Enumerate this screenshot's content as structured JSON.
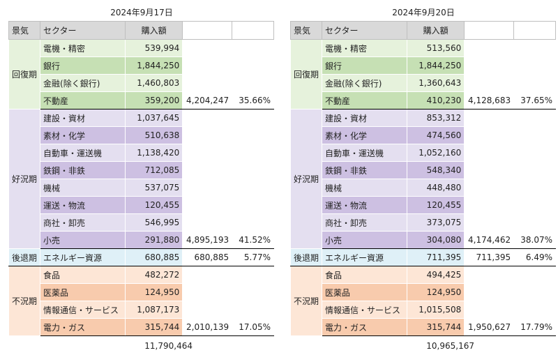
{
  "panels": [
    {
      "date": "2024年9月17日",
      "headers": {
        "phase": "景気",
        "sector": "セクター",
        "amount": "購入額"
      },
      "groups": [
        {
          "phase": "回復期",
          "color_light": "#e6f2dc",
          "color_dark": "#c6e0b4",
          "sum": "4,204,247",
          "pct": "35.66%",
          "rows": [
            {
              "sector": "電機・精密",
              "amount": "539,994"
            },
            {
              "sector": "銀行",
              "amount": "1,844,250"
            },
            {
              "sector": "金融(除く銀行)",
              "amount": "1,460,803"
            },
            {
              "sector": "不動産",
              "amount": "359,200"
            }
          ]
        },
        {
          "phase": "好況期",
          "color_light": "#e4dff0",
          "color_dark": "#cdc0e2",
          "sum": "4,895,193",
          "pct": "41.52%",
          "rows": [
            {
              "sector": "建設・資材",
              "amount": "1,037,645"
            },
            {
              "sector": "素材・化学",
              "amount": "510,638"
            },
            {
              "sector": "自動車・運送機",
              "amount": "1,138,420"
            },
            {
              "sector": "鉄鋼・非鉄",
              "amount": "712,085"
            },
            {
              "sector": "機械",
              "amount": "537,075"
            },
            {
              "sector": "運送・物流",
              "amount": "120,455"
            },
            {
              "sector": "商社・卸売",
              "amount": "546,995"
            },
            {
              "sector": "小売",
              "amount": "291,880"
            }
          ]
        },
        {
          "phase": "後退期",
          "color_light": "#dff0f7",
          "color_dark": "#dff0f7",
          "sum": "680,885",
          "pct": "5.77%",
          "rows": [
            {
              "sector": "エネルギー資源",
              "amount": "680,885"
            }
          ]
        },
        {
          "phase": "不況期",
          "color_light": "#fde6d6",
          "color_dark": "#f8cbad",
          "sum": "2,010,139",
          "pct": "17.05%",
          "rows": [
            {
              "sector": "食品",
              "amount": "482,272"
            },
            {
              "sector": "医薬品",
              "amount": "124,950"
            },
            {
              "sector": "情報通信・サービス",
              "amount": "1,087,173"
            },
            {
              "sector": "電力・ガス",
              "amount": "315,744"
            }
          ]
        }
      ],
      "total": "11,790,464"
    },
    {
      "date": "2024年9月20日",
      "headers": {
        "phase": "景気",
        "sector": "セクター",
        "amount": "購入額"
      },
      "groups": [
        {
          "phase": "回復期",
          "color_light": "#e6f2dc",
          "color_dark": "#c6e0b4",
          "sum": "4,128,683",
          "pct": "37.65%",
          "rows": [
            {
              "sector": "電機・精密",
              "amount": "513,560"
            },
            {
              "sector": "銀行",
              "amount": "1,844,250"
            },
            {
              "sector": "金融(除く銀行)",
              "amount": "1,360,643"
            },
            {
              "sector": "不動産",
              "amount": "410,230"
            }
          ]
        },
        {
          "phase": "好況期",
          "color_light": "#e4dff0",
          "color_dark": "#cdc0e2",
          "sum": "4,174,462",
          "pct": "38.07%",
          "rows": [
            {
              "sector": "建設・資材",
              "amount": "853,312"
            },
            {
              "sector": "素材・化学",
              "amount": "474,560"
            },
            {
              "sector": "自動車・運送機",
              "amount": "1,052,160"
            },
            {
              "sector": "鉄鋼・非鉄",
              "amount": "548,340"
            },
            {
              "sector": "機械",
              "amount": "448,480"
            },
            {
              "sector": "運送・物流",
              "amount": "120,455"
            },
            {
              "sector": "商社・卸売",
              "amount": "373,075"
            },
            {
              "sector": "小売",
              "amount": "304,080"
            }
          ]
        },
        {
          "phase": "後退期",
          "color_light": "#dff0f7",
          "color_dark": "#dff0f7",
          "sum": "711,395",
          "pct": "6.49%",
          "rows": [
            {
              "sector": "エネルギー資源",
              "amount": "711,395"
            }
          ]
        },
        {
          "phase": "不況期",
          "color_light": "#fde6d6",
          "color_dark": "#f8cbad",
          "sum": "1,950,627",
          "pct": "17.79%",
          "rows": [
            {
              "sector": "食品",
              "amount": "494,425"
            },
            {
              "sector": "医薬品",
              "amount": "124,950"
            },
            {
              "sector": "情報通信・サービス",
              "amount": "1,015,508"
            },
            {
              "sector": "電力・ガス",
              "amount": "315,744"
            }
          ]
        }
      ],
      "total": "10,965,167"
    }
  ]
}
